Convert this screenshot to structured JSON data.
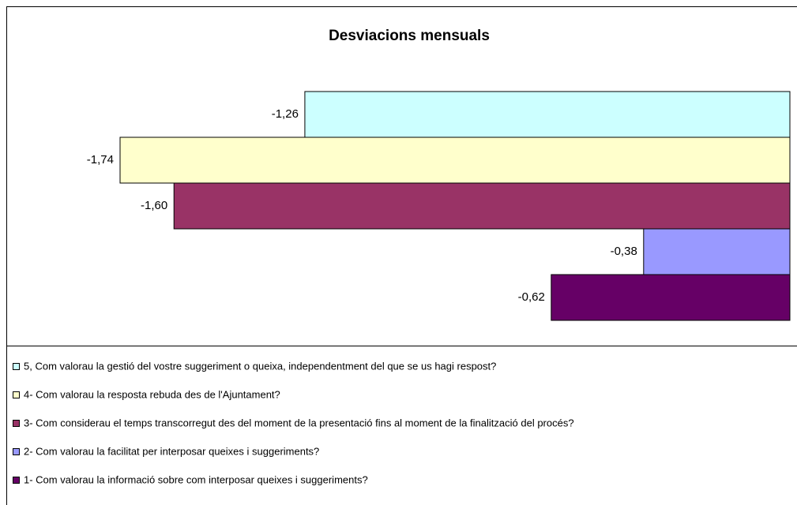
{
  "chart_data": {
    "type": "bar",
    "orientation": "horizontal",
    "title": "Desviacions mensuals",
    "series": [
      {
        "name": "5, Com valorau la gestió del vostre suggeriment o queixa, independentment del que se us hagi respost?",
        "color": "#ccffff",
        "values": [
          -1.26
        ],
        "value_labels": [
          "-1,26"
        ]
      },
      {
        "name": "4- Com valorau la resposta rebuda des de l'Ajuntament?",
        "color": "#ffffcc",
        "values": [
          -1.74
        ],
        "value_labels": [
          "-1,74"
        ]
      },
      {
        "name": "3- Com considerau el temps transcorregut des del moment de la presentació fins al moment de la finalització del procés?",
        "color": "#993366",
        "values": [
          -1.6
        ],
        "value_labels": [
          "-1,60"
        ]
      },
      {
        "name": "2- Com valorau la facilitat per interposar queixes i suggeriments?",
        "color": "#9999ff",
        "values": [
          -0.38
        ],
        "value_labels": [
          "-0,38"
        ]
      },
      {
        "name": "1- Com valorau la informació sobre com interposar queixes i suggeriments?",
        "color": "#660066",
        "values": [
          -0.62
        ],
        "value_labels": [
          "-0,62"
        ]
      }
    ]
  }
}
